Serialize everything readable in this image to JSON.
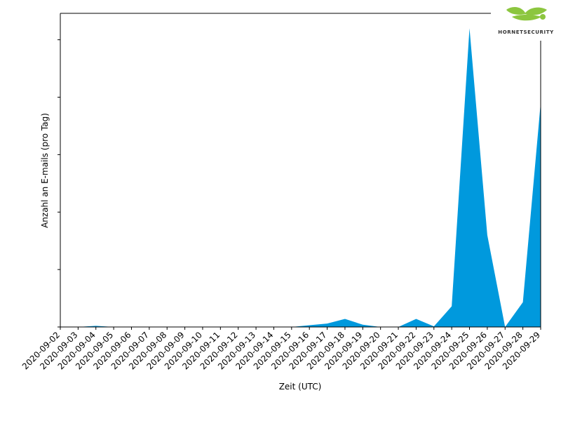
{
  "chart_data": {
    "type": "area",
    "xlabel": "Zeit (UTC)",
    "ylabel": "Anzahl an E-mails (pro Tag)",
    "x": [
      "2020-09-02",
      "2020-09-03",
      "2020-09-04",
      "2020-09-05",
      "2020-09-06",
      "2020-09-07",
      "2020-09-08",
      "2020-09-09",
      "2020-09-10",
      "2020-09-11",
      "2020-09-12",
      "2020-09-13",
      "2020-09-14",
      "2020-09-15",
      "2020-09-16",
      "2020-09-17",
      "2020-09-18",
      "2020-09-19",
      "2020-09-20",
      "2020-09-21",
      "2020-09-22",
      "2020-09-23",
      "2020-09-24",
      "2020-09-25",
      "2020-09-26",
      "2020-09-27",
      "2020-09-28",
      "2020-09-29"
    ],
    "values": [
      0,
      0,
      2,
      0,
      0,
      0,
      0,
      0,
      0,
      0,
      0,
      0,
      0,
      0,
      3,
      6,
      14,
      4,
      0,
      0,
      14,
      1,
      36,
      520,
      160,
      0,
      43,
      390
    ],
    "ylim": [
      0,
      546
    ],
    "y_tick_labels_shown": false,
    "grid": false,
    "color": "#0099dd"
  },
  "logo": {
    "text": "HORNETSECURITY",
    "color": "#8cc63f"
  }
}
